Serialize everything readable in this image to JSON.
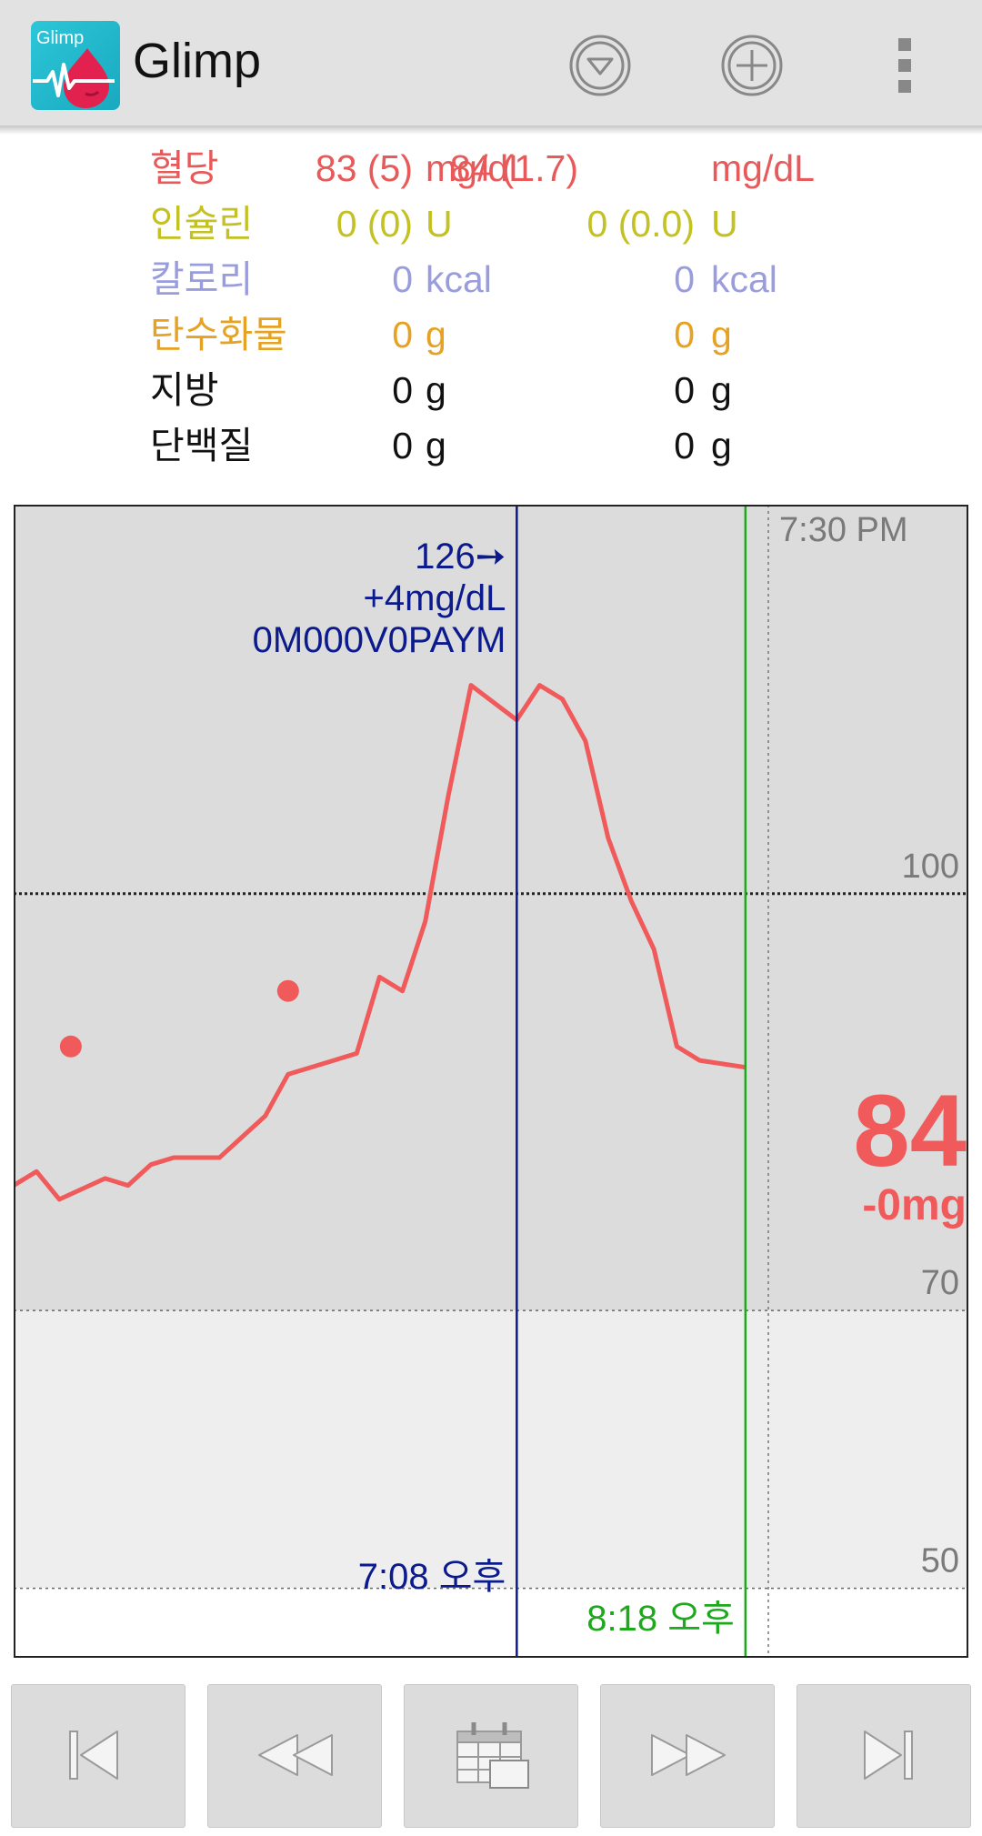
{
  "app": {
    "title": "Glimp",
    "icon_text": "Glimp",
    "icons": {
      "app": "glimp-logo-icon",
      "filter": "dropdown-circle-icon",
      "add": "plus-circle-icon",
      "menu": "more-vert-icon"
    }
  },
  "summary": {
    "rows": [
      {
        "label": "혈당",
        "v1": "83 (5)",
        "u1": "mg/dL",
        "v2": "84 (1.7)",
        "u2": "mg/dL",
        "color": "#e8595a"
      },
      {
        "label": "인슐린",
        "v1": "0 (0)",
        "u1": "U",
        "v2": "0 (0.0)",
        "u2": "U",
        "color": "#c3c222"
      },
      {
        "label": "칼로리",
        "v1": "0",
        "u1": "kcal",
        "v2": "0",
        "u2": "kcal",
        "color": "#9a9ddd"
      },
      {
        "label": "탄수화물",
        "v1": "0",
        "u1": "g",
        "v2": "0",
        "u2": "g",
        "color": "#e6a323"
      },
      {
        "label": "지방",
        "v1": "0",
        "u1": "g",
        "v2": "0",
        "u2": "g",
        "color": "#111111"
      },
      {
        "label": "단백질",
        "v1": "0",
        "u1": "g",
        "v2": "0",
        "u2": "g",
        "color": "#111111"
      }
    ]
  },
  "chart_data": {
    "type": "line",
    "series": [
      {
        "color": "#f05a5a",
        "x": [
          "6:24",
          "6:26",
          "6:28",
          "6:32",
          "6:34",
          "6:36",
          "6:38",
          "6:40",
          "6:42",
          "6:44",
          "6:46",
          "6:48",
          "6:52",
          "6:54",
          "6:56",
          "6:58",
          "6:59",
          "7:00",
          "7:02",
          "7:02",
          "7:04",
          "7:08",
          "7:10",
          "7:12",
          "7:14",
          "7:16",
          "7:18",
          "7:20",
          "7:22",
          "7:24",
          "7:28"
        ],
        "values": [
          79,
          80,
          78,
          79.5,
          79,
          80.5,
          81,
          81,
          81,
          82.5,
          84,
          87,
          88,
          88.5,
          94,
          93,
          95.5,
          98,
          107,
          107,
          115,
          112.5,
          115,
          114,
          111,
          104,
          99.5,
          96,
          89,
          88,
          87.5
        ]
      }
    ],
    "points": [
      {
        "x": "6:48",
        "y": 93
      },
      {
        "x": "6:29",
        "y": 89
      }
    ],
    "y_ticks": [
      {
        "label": "100",
        "value": 100
      },
      {
        "label": "70",
        "value": 70
      },
      {
        "label": "50",
        "value": 50
      }
    ],
    "x_ticks": [
      {
        "label": "7:30 PM",
        "time": "7:30"
      }
    ],
    "ylim": [
      45,
      128
    ],
    "xlim": [
      "6:24",
      "7:30"
    ],
    "target_range": [
      70,
      100
    ],
    "cursor_blue": {
      "time": "7:08",
      "lines": [
        "126➙",
        "+4mg/dL",
        "0M000V0PAYM"
      ],
      "label": "7:08 오후",
      "color": "#0b1a8c"
    },
    "cursor_green": {
      "time": "7:28",
      "label": "8:18 오후",
      "color": "#1ea81e"
    },
    "current": {
      "value": "84",
      "delta": "-0mg",
      "color": "#f05a5a"
    }
  },
  "nav": {
    "buttons": [
      {
        "name": "first-button",
        "icon": "skip-first-icon"
      },
      {
        "name": "rewind-button",
        "icon": "rewind-icon"
      },
      {
        "name": "calendar-button",
        "icon": "calendar-icon"
      },
      {
        "name": "forward-button",
        "icon": "fast-forward-icon"
      },
      {
        "name": "last-button",
        "icon": "skip-last-icon"
      }
    ]
  }
}
